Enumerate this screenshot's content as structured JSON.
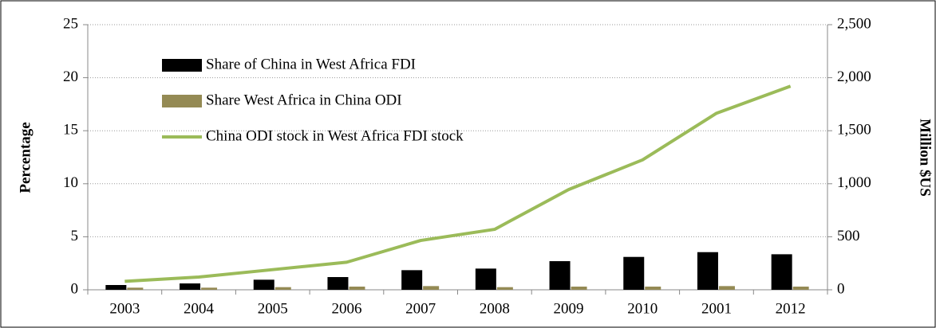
{
  "chart_data": {
    "type": "bar-line",
    "categories": [
      "2003",
      "2004",
      "2005",
      "2006",
      "2007",
      "2008",
      "2009",
      "2010",
      "2001",
      "2012"
    ],
    "series": [
      {
        "name": "Share of China in West Africa FDI",
        "color": "#000000",
        "type": "bar",
        "values": [
          0.45,
          0.6,
          0.95,
          1.2,
          1.85,
          2.0,
          2.7,
          3.1,
          3.55,
          3.35
        ]
      },
      {
        "name": "Share West Africa in China ODI",
        "color": "#948a54",
        "type": "bar",
        "values": [
          0.2,
          0.2,
          0.25,
          0.3,
          0.35,
          0.25,
          0.3,
          0.3,
          0.35,
          0.3
        ]
      },
      {
        "name": "China ODI stock in West Africa FDI stock",
        "color": "#9bbb59",
        "type": "line",
        "axis": "y2",
        "values": [
          80,
          120,
          190,
          260,
          465,
          570,
          945,
          1225,
          1665,
          1920
        ]
      }
    ],
    "y_label": "Percentage",
    "y2_label": "Million $US",
    "ylim": [
      0,
      25
    ],
    "yticks": [
      0,
      5,
      10,
      15,
      20,
      25
    ],
    "y2lim": [
      0,
      2500
    ],
    "y2ticks": [
      0,
      500,
      {
        "value": 1000,
        "label": "1,000"
      },
      {
        "value": 1500,
        "label": "1,500"
      },
      {
        "value": 2000,
        "label": "2,000"
      },
      {
        "value": 2500,
        "label": "2,500"
      }
    ],
    "grid": true,
    "legend": "top-left"
  }
}
